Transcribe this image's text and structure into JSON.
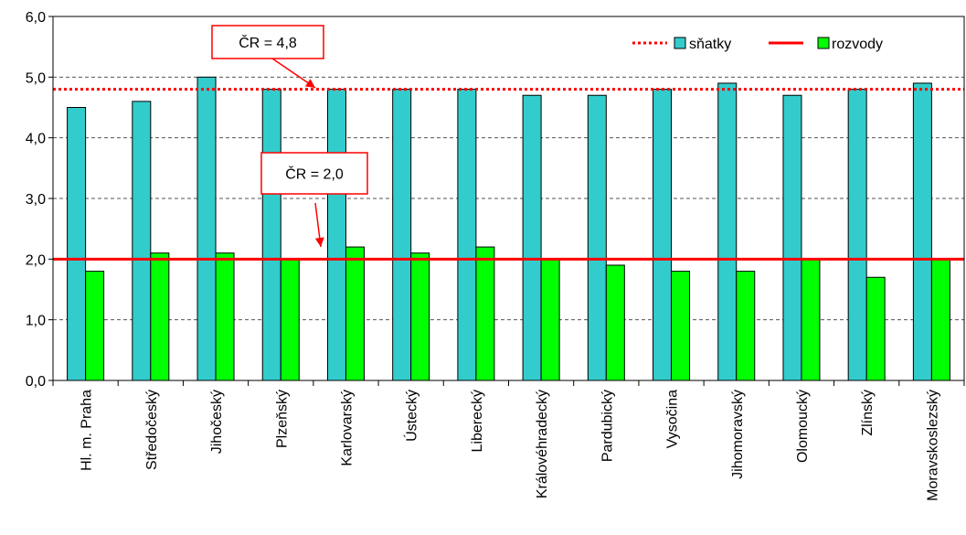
{
  "chart_data": {
    "type": "bar",
    "categories": [
      "Hl. m. Praha",
      "Středočeský",
      "Jihočeský",
      "Plzeňský",
      "Karlovarský",
      "Ústecký",
      "Liberecký",
      "Královéhradecký",
      "Pardubický",
      "Vysočina",
      "Jihomoravský",
      "Olomoucký",
      "Zlínský",
      "Moravskoslezský"
    ],
    "series": [
      {
        "name": "sňatky",
        "color": "#33cccc",
        "values": [
          4.5,
          4.6,
          5.0,
          4.8,
          4.8,
          4.8,
          4.8,
          4.7,
          4.7,
          4.8,
          4.9,
          4.7,
          4.8,
          4.9
        ]
      },
      {
        "name": "rozvody",
        "color": "#00ff00",
        "values": [
          1.8,
          2.1,
          2.1,
          2.0,
          2.2,
          2.1,
          2.2,
          2.0,
          1.9,
          1.8,
          1.8,
          2.0,
          1.7,
          2.0
        ]
      }
    ],
    "reference_lines": [
      {
        "series": "sňatky",
        "value": 4.8,
        "style": "dotted",
        "color": "#ff0000",
        "annotation": "ČR = 4,8"
      },
      {
        "series": "rozvody",
        "value": 2.0,
        "style": "solid",
        "color": "#ff0000",
        "annotation": "ČR = 2,0"
      }
    ],
    "ylim": [
      0,
      6
    ],
    "yticks": [
      "0,0",
      "1,0",
      "2,0",
      "3,0",
      "4,0",
      "5,0",
      "6,0"
    ],
    "grid": "horizontal dashed",
    "legend": {
      "placement": "top-right",
      "entries": [
        "sňatky",
        "rozvody"
      ]
    }
  }
}
